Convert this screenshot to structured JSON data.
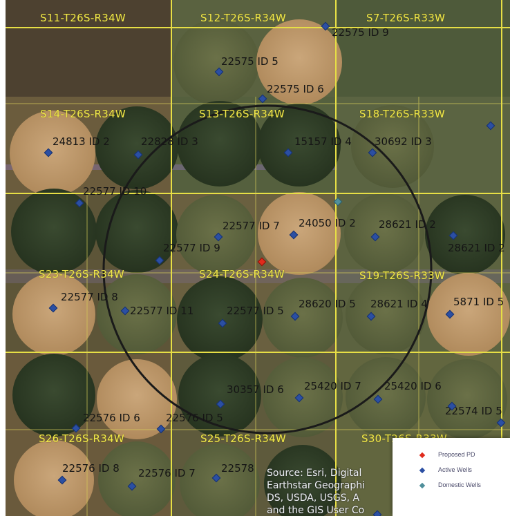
{
  "map": {
    "sections": [
      {
        "label": "S11-T26S-R34W"
      },
      {
        "label": "S12-T26S-R34W"
      },
      {
        "label": "S7-T26S-R33W"
      },
      {
        "label": "S14-T26S-R34W"
      },
      {
        "label": "S13-T26S-R34W"
      },
      {
        "label": "S18-T26S-R33W"
      },
      {
        "label": "S23-T26S-R34W"
      },
      {
        "label": "S24-T26S-R34W"
      },
      {
        "label": "S19-T26S-R33W"
      },
      {
        "label": "S26-T26S-R34W"
      },
      {
        "label": "S25-T26S-R34W"
      },
      {
        "label": "S30-T26S-R33W"
      }
    ],
    "wells": [
      {
        "label": "22575 ID 9",
        "type": "active"
      },
      {
        "label": "22575 ID 5",
        "type": "active"
      },
      {
        "label": "22575 ID 6",
        "type": "active"
      },
      {
        "label": "24813 ID 2",
        "type": "active"
      },
      {
        "label": "22828 ID 3",
        "type": "active"
      },
      {
        "label": "15157 ID 4",
        "type": "active"
      },
      {
        "label": "30692 ID 3",
        "type": "active"
      },
      {
        "label": "22577 ID 10",
        "type": "active"
      },
      {
        "label": "22577 ID 7",
        "type": "active"
      },
      {
        "label": "24050 ID 2",
        "type": "active"
      },
      {
        "label": "28621 ID 2",
        "type": "active"
      },
      {
        "label": "28621 ID 2",
        "type": "active"
      },
      {
        "label": "22577 ID 9",
        "type": "active"
      },
      {
        "label": "22577 ID 8",
        "type": "active"
      },
      {
        "label": "22577 ID 11",
        "type": "active"
      },
      {
        "label": "22577 ID 5",
        "type": "active"
      },
      {
        "label": "28620 ID 5",
        "type": "active"
      },
      {
        "label": "28621 ID 4",
        "type": "active"
      },
      {
        "label": "5871 ID 5",
        "type": "active"
      },
      {
        "label": "30357 ID 6",
        "type": "active"
      },
      {
        "label": "25420 ID 7",
        "type": "active"
      },
      {
        "label": "25420 ID 6",
        "type": "active"
      },
      {
        "label": "22576 ID 6",
        "type": "active"
      },
      {
        "label": "22576 ID 5",
        "type": "active"
      },
      {
        "label": "22574 ID 5",
        "type": "active"
      },
      {
        "label": "22576 ID 8",
        "type": "active"
      },
      {
        "label": "22576 ID 7",
        "type": "active"
      },
      {
        "label": "22578",
        "type": "active"
      }
    ],
    "unlabeled_points": [
      {
        "type": "active"
      },
      {
        "type": "active"
      },
      {
        "type": "active"
      },
      {
        "type": "domestic"
      },
      {
        "type": "proposed"
      }
    ],
    "source_text": [
      "Source: Esri, Digital",
      "Earthstar Geographi",
      "DS, USDA, USGS, A",
      "and the GIS User Co"
    ]
  },
  "legend": {
    "items": [
      {
        "label": "Proposed PD",
        "color": "#e02b1c"
      },
      {
        "label": "Active Wells",
        "color": "#2b4fa3"
      },
      {
        "label": "Domestic Wells",
        "color": "#4f8f9b"
      }
    ]
  },
  "colors": {
    "section_line": "#e7df45",
    "buffer_circle": "#1a1a1a",
    "label_yellow": "#f0e94c"
  }
}
